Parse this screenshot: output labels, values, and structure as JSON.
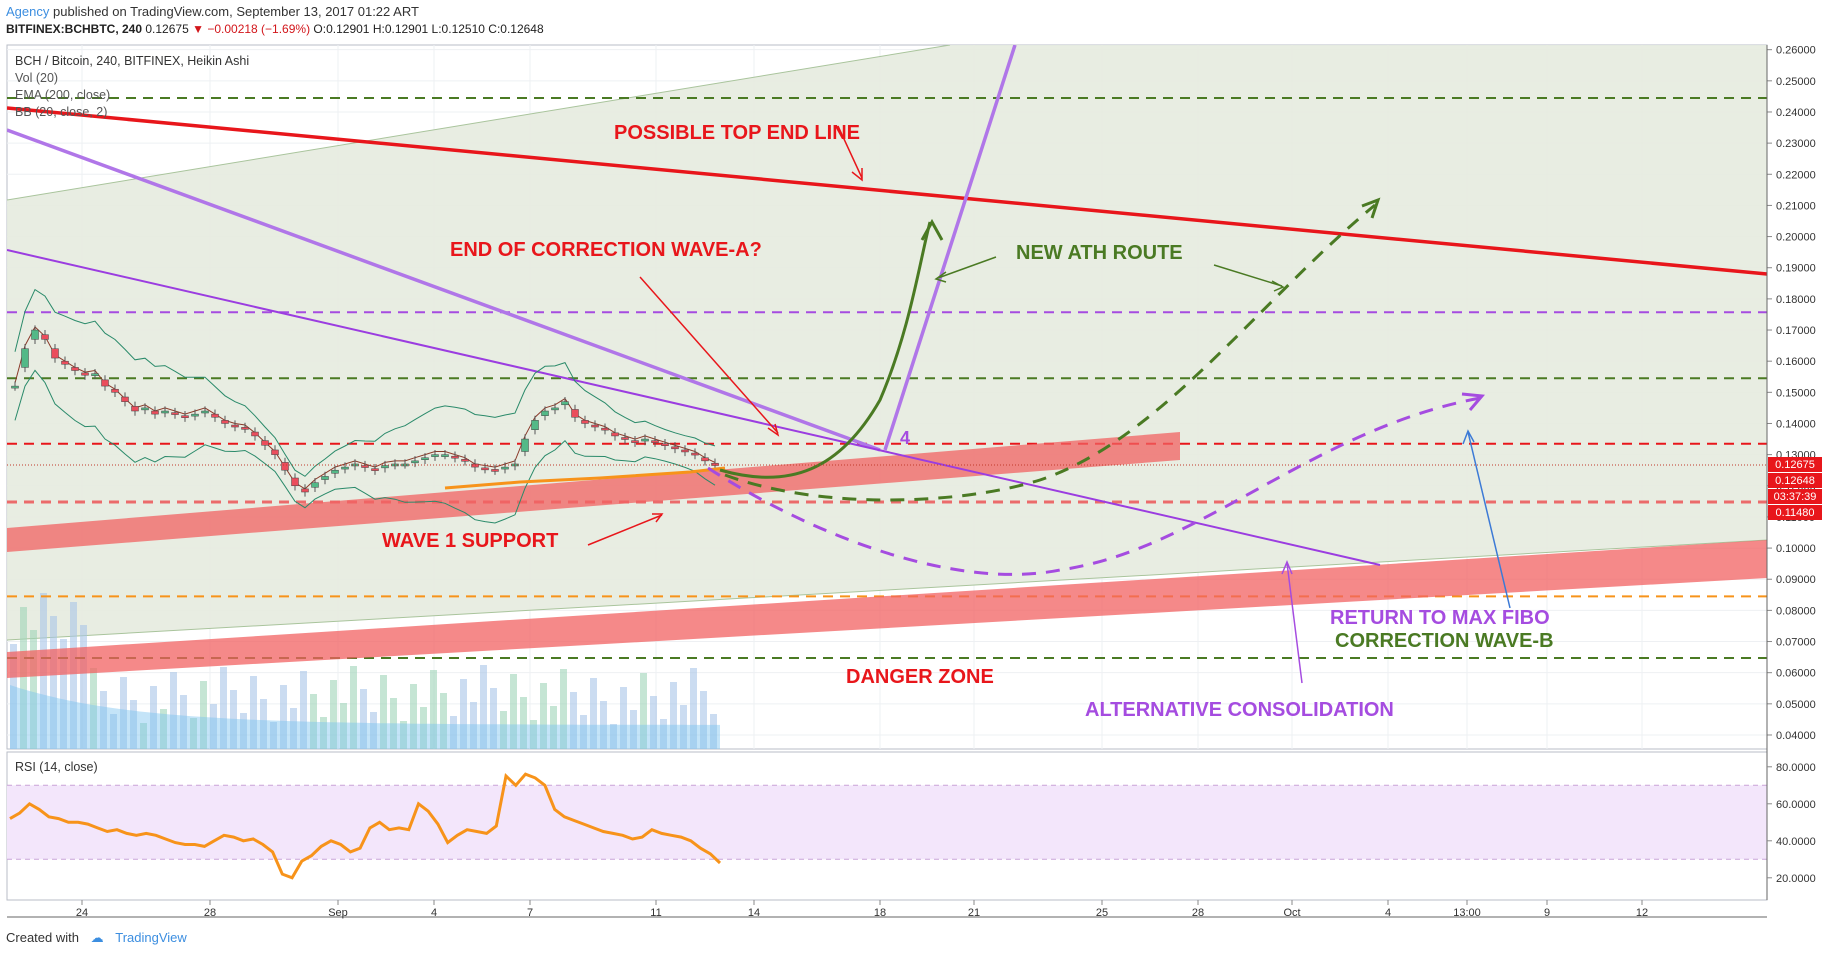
{
  "header": {
    "author": "Agency",
    "published_text": "published on TradingView.com, September 13, 2017 01:22 ART",
    "symbol_line": "BITFINEX:BCHBTC, 240",
    "last": "0.12675",
    "change": "−0.00218 (−1.69%)",
    "o": "O:0.12901",
    "h": "H:0.12901",
    "l": "L:0.12510",
    "c": "C:0.12648"
  },
  "legend": {
    "title": "BCH / Bitcoin, 240, BITFINEX, Heikin Ashi",
    "vol": "Vol (20)",
    "ema": "EMA (200, close)",
    "bb": "BB (20, close, 2)",
    "rsi": "RSI (14, close)"
  },
  "footer": {
    "created_with": "Created with",
    "brand": "TradingView"
  },
  "annotations": {
    "top_end_line": "POSSIBLE TOP END LINE",
    "end_correction": "END OF CORRECTION WAVE-A?",
    "new_ath": "NEW ATH ROUTE",
    "wave1_support": "WAVE 1 SUPPORT",
    "danger_zone": "DANGER ZONE",
    "return_fibo_1": "RETURN TO MAX FIBO",
    "return_fibo_2": "CORRECTION WAVE-B",
    "alt_consolidation": "ALTERNATIVE CONSOLIDATION",
    "wave_number": "4"
  },
  "price_badges": {
    "last": "0.12675",
    "close": "0.12648",
    "countdown": "03:37:39",
    "level": "0.11480"
  },
  "colors": {
    "up": "#53b987",
    "down": "#eb4d5c",
    "red": "#e8161b",
    "purple": "#a54ce0",
    "green_dark": "#4a7a23",
    "orange": "#f7931a",
    "band": "#f26161"
  },
  "chart_data": {
    "type": "line",
    "price_axis": {
      "ticks": [
        "0.26000",
        "0.25000",
        "0.24000",
        "0.23000",
        "0.22000",
        "0.21000",
        "0.20000",
        "0.19000",
        "0.18000",
        "0.17000",
        "0.16000",
        "0.15000",
        "0.14000",
        "0.13000",
        "0.12000",
        "0.11000",
        "0.10000",
        "0.09000",
        "0.08000",
        "0.07000",
        "0.06000",
        "0.05000",
        "0.04000"
      ],
      "ylim": [
        0.0355,
        0.2615
      ]
    },
    "rsi_axis": {
      "ticks": [
        "80.0000",
        "60.0000",
        "40.0000",
        "20.0000"
      ],
      "ylim": [
        8,
        88
      ],
      "band": [
        30,
        70
      ]
    },
    "time_axis": {
      "ticks": [
        "24",
        "28",
        "Sep",
        "4",
        "7",
        "11",
        "14",
        "18",
        "21",
        "25",
        "28",
        "Oct",
        "4",
        "13:00",
        "9",
        "12"
      ]
    },
    "horizontal_levels": [
      {
        "price": 0.2445,
        "color": "#4a7a23"
      },
      {
        "price": 0.1757,
        "color": "#a54ce0"
      },
      {
        "price": 0.1545,
        "color": "#4a7a23"
      },
      {
        "price": 0.1335,
        "color": "#e8161b"
      },
      {
        "price": 0.1148,
        "color": "#eb6b6b"
      },
      {
        "price": 0.0845,
        "color": "#f7931a"
      },
      {
        "price": 0.0647,
        "color": "#4a7a23"
      }
    ],
    "rsi_series": [
      52,
      55,
      60,
      57,
      53,
      52,
      50,
      50,
      49,
      47,
      45,
      46,
      44,
      43,
      44,
      43,
      41,
      39,
      38,
      38,
      37,
      40,
      43,
      42,
      40,
      41,
      38,
      34,
      22,
      20,
      29,
      32,
      37,
      40,
      38,
      34,
      36,
      47,
      50,
      46,
      47,
      46,
      60,
      56,
      49,
      39,
      43,
      46,
      45,
      44,
      48,
      75,
      70,
      76,
      74,
      70,
      57,
      53,
      51,
      49,
      47,
      45,
      44,
      43,
      41,
      42,
      46,
      44,
      43,
      42,
      40,
      36,
      33,
      28
    ],
    "candles": [
      0.152,
      0.164,
      0.17,
      0.167,
      0.161,
      0.159,
      0.157,
      0.1555,
      0.156,
      0.152,
      0.15,
      0.147,
      0.144,
      0.145,
      0.143,
      0.144,
      0.143,
      0.142,
      0.143,
      0.144,
      0.142,
      0.14,
      0.139,
      0.1385,
      0.136,
      0.133,
      0.13,
      0.125,
      0.12,
      0.118,
      0.121,
      0.123,
      0.125,
      0.126,
      0.127,
      0.126,
      0.125,
      0.1265,
      0.127,
      0.127,
      0.128,
      0.129,
      0.13,
      0.13,
      0.129,
      0.128,
      0.126,
      0.1255,
      0.125,
      0.126,
      0.127,
      0.135,
      0.141,
      0.144,
      0.145,
      0.147,
      0.142,
      0.14,
      0.139,
      0.138,
      0.136,
      0.135,
      0.134,
      0.135,
      0.134,
      0.133,
      0.132,
      0.131,
      0.13,
      0.128,
      0.1265
    ]
  }
}
